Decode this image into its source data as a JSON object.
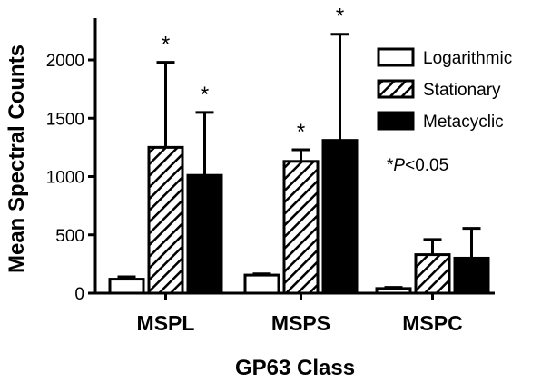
{
  "chart_data": {
    "type": "bar",
    "title": "",
    "xlabel": "GP63 Class",
    "ylabel": "Mean Spectral Counts",
    "ylim": [
      0,
      2300
    ],
    "yticks": [
      0,
      500,
      1000,
      1500,
      2000
    ],
    "categories": [
      "MSPL",
      "MSPS",
      "MSPC"
    ],
    "series": [
      {
        "name": "Logarithmic",
        "pattern": "open",
        "values": [
          120,
          155,
          40
        ],
        "errors": [
          20,
          10,
          10
        ],
        "significant": [
          false,
          false,
          false
        ]
      },
      {
        "name": "Stationary",
        "pattern": "hatch",
        "values": [
          1250,
          1130,
          330
        ],
        "errors": [
          730,
          100,
          130
        ],
        "significant": [
          true,
          true,
          false
        ]
      },
      {
        "name": "Metacyclic",
        "pattern": "solid",
        "values": [
          1010,
          1310,
          300
        ],
        "errors": [
          540,
          910,
          255
        ],
        "significant": [
          true,
          true,
          false
        ]
      }
    ],
    "significance_marker": "*",
    "annotation": {
      "marker": "*",
      "italic": "P",
      "rest": "<0.05"
    },
    "legend_position": "top-right",
    "grid": false
  }
}
